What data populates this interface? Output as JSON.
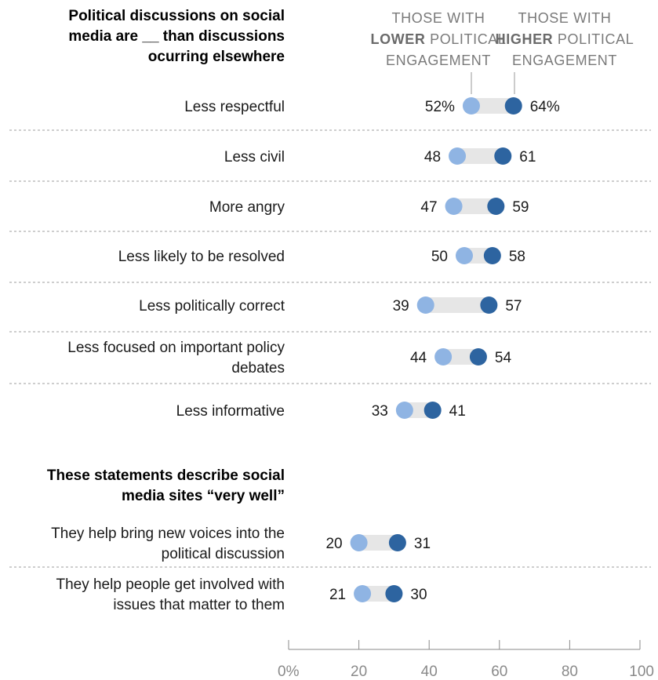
{
  "chart_data": {
    "type": "dot",
    "legend": {
      "lower": [
        "THOSE WITH",
        "LOWER POLITICAL",
        "ENGAGEMENT"
      ],
      "higher": [
        "THOSE WITH",
        "HIGHER POLITICAL",
        "ENGAGEMENT"
      ],
      "lower_bold_word": "LOWER",
      "higher_bold_word": "HIGHER"
    },
    "sections": [
      {
        "title": [
          "Political discussions on social",
          "media are __ than discussions",
          "ocurring elsewhere"
        ],
        "rows": [
          {
            "label": [
              "Less respectful"
            ],
            "lower": 52,
            "higher": 64,
            "lower_label": "52%",
            "higher_label": "64%"
          },
          {
            "label": [
              "Less civil"
            ],
            "lower": 48,
            "higher": 61,
            "lower_label": "48",
            "higher_label": "61"
          },
          {
            "label": [
              "More angry"
            ],
            "lower": 47,
            "higher": 59,
            "lower_label": "47",
            "higher_label": "59"
          },
          {
            "label": [
              "Less likely to be resolved"
            ],
            "lower": 50,
            "higher": 58,
            "lower_label": "50",
            "higher_label": "58"
          },
          {
            "label": [
              "Less politically correct"
            ],
            "lower": 39,
            "higher": 57,
            "lower_label": "39",
            "higher_label": "57"
          },
          {
            "label": [
              "Less focused on important policy",
              "debates"
            ],
            "lower": 44,
            "higher": 54,
            "lower_label": "44",
            "higher_label": "54"
          },
          {
            "label": [
              "Less informative"
            ],
            "lower": 33,
            "higher": 41,
            "lower_label": "33",
            "higher_label": "41"
          }
        ]
      },
      {
        "title": [
          "These statements describe social",
          "media sites “very well”"
        ],
        "rows": [
          {
            "label": [
              "They help bring new voices into the",
              "political discussion"
            ],
            "lower": 20,
            "higher": 31,
            "lower_label": "20",
            "higher_label": "31"
          },
          {
            "label": [
              "They help people get involved with",
              "issues that matter to them"
            ],
            "lower": 21,
            "higher": 30,
            "lower_label": "21",
            "higher_label": "30"
          }
        ]
      }
    ],
    "x_axis": {
      "range": [
        0,
        100
      ],
      "ticks": [
        0,
        20,
        40,
        60,
        80,
        100
      ],
      "tick_labels": [
        "0%",
        "20",
        "40",
        "60",
        "80",
        "100"
      ]
    },
    "colors": {
      "lower": "#8fb4e3",
      "higher": "#2d64a0",
      "bar": "#e6e6e6",
      "divider": "#bdbdbd"
    }
  }
}
